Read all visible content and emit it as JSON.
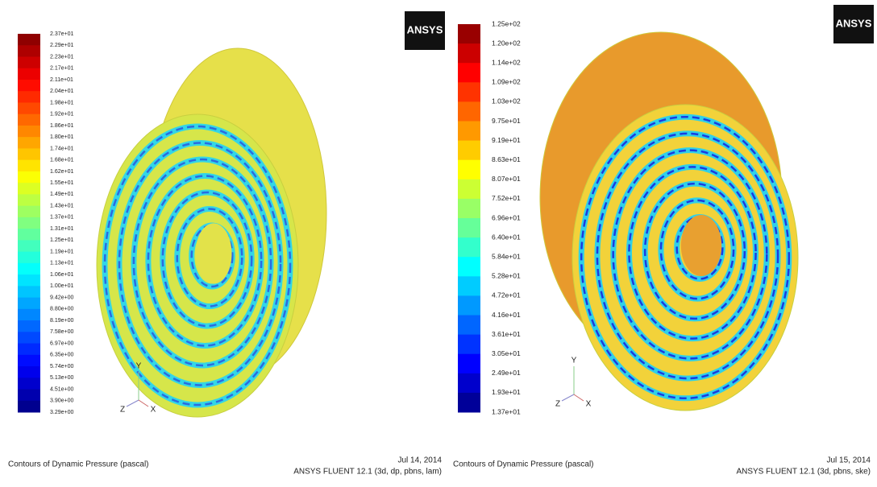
{
  "panels": [
    {
      "legend_labels": [
        "2.37e+01",
        "2.29e+01",
        "2.23e+01",
        "2.17e+01",
        "2.11e+01",
        "2.04e+01",
        "1.98e+01",
        "1.92e+01",
        "1.86e+01",
        "1.80e+01",
        "1.74e+01",
        "1.68e+01",
        "1.62e+01",
        "1.55e+01",
        "1.49e+01",
        "1.43e+01",
        "1.37e+01",
        "1.31e+01",
        "1.25e+01",
        "1.19e+01",
        "1.13e+01",
        "1.06e+01",
        "1.00e+01",
        "9.42e+00",
        "8.80e+00",
        "8.19e+00",
        "7.58e+00",
        "6.97e+00",
        "6.35e+00",
        "5.74e+00",
        "5.13e+00",
        "4.51e+00",
        "3.90e+00",
        "3.29e+00"
      ],
      "logo": "ANSYS",
      "axes": [
        "Y",
        "Z",
        "X"
      ],
      "caption": "Contours of Dynamic Pressure (pascal)",
      "date": "Jul 14, 2014",
      "solver": "ANSYS FLUENT 12.1 (3d, dp, pbns, lam)"
    },
    {
      "legend_labels": [
        "1.25e+02",
        "1.20e+02",
        "1.14e+02",
        "1.09e+02",
        "1.03e+02",
        "9.75e+01",
        "9.19e+01",
        "8.63e+01",
        "8.07e+01",
        "7.52e+01",
        "6.96e+01",
        "6.40e+01",
        "5.84e+01",
        "5.28e+01",
        "4.72e+01",
        "4.16e+01",
        "3.61e+01",
        "3.05e+01",
        "2.49e+01",
        "1.93e+01",
        "1.37e+01"
      ],
      "logo": "ANSYS",
      "axes": [
        "Y",
        "Z",
        "X"
      ],
      "caption": "Contours of Dynamic Pressure (pascal)",
      "date": "Jul 15, 2014",
      "solver": "ANSYS FLUENT 12.1 (3d, pbns, ske)"
    }
  ]
}
